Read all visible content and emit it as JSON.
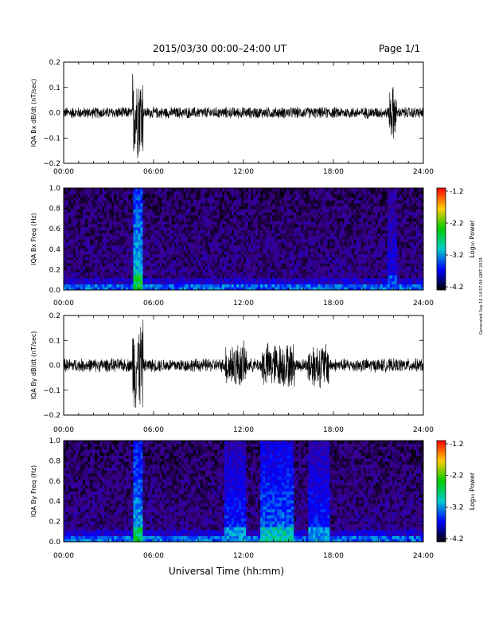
{
  "header": {
    "title": "2015/03/30  00:00–24:00 UT",
    "page": "Page 1/1"
  },
  "footer": {
    "xlabel": "Universal Time (hh:mm)",
    "stamp": "Generated Sep 10 14:57:06 GMT 2019"
  },
  "colorbar": {
    "label": "Log₁₀ Power",
    "ticks": [
      "-1.2",
      "-2.2",
      "-3.2",
      "-4.2"
    ],
    "stops": [
      "#ff0000",
      "#ffcc00",
      "#00cc00",
      "#00cccc",
      "#0000ff",
      "#000000"
    ]
  },
  "chart_data": [
    {
      "type": "line",
      "ylabel": "IQA Bx dB/dt (nT/sec)",
      "xticks": [
        "00:00",
        "06:00",
        "12:00",
        "18:00",
        "24:00"
      ],
      "yticks": [
        "0.2",
        "0.1",
        "0.0",
        "−0.1",
        "−0.2"
      ],
      "xlim": [
        0,
        24
      ],
      "ylim": [
        -0.2,
        0.2
      ],
      "color": "#000000",
      "bursts": [
        {
          "start": 4.6,
          "end": 5.3,
          "amplitude": 0.2
        },
        {
          "start": 21.7,
          "end": 22.2,
          "amplitude": 0.12
        }
      ],
      "baseline_amplitude": 0.025
    },
    {
      "type": "heatmap",
      "ylabel": "IQA Bx Freq (Hz)",
      "xticks": [
        "00:00",
        "06:00",
        "12:00",
        "18:00",
        "24:00"
      ],
      "yticks": [
        "1.0",
        "0.8",
        "0.6",
        "0.4",
        "0.2",
        "0.0"
      ],
      "xlim": [
        0,
        24
      ],
      "ylim": [
        0,
        1.0
      ],
      "colorscale_range": [
        -4.2,
        -1.2
      ],
      "active_intervals": [
        {
          "start": 4.6,
          "end": 5.3,
          "level": -2.5
        },
        {
          "start": 21.6,
          "end": 22.3,
          "level": -3.2
        }
      ]
    },
    {
      "type": "line",
      "ylabel": "IQA By dB/dt (nT/sec)",
      "xticks": [
        "00:00",
        "06:00",
        "12:00",
        "18:00",
        "24:00"
      ],
      "yticks": [
        "0.2",
        "0.1",
        "0.0",
        "−0.1",
        "−0.2"
      ],
      "xlim": [
        0,
        24
      ],
      "ylim": [
        -0.2,
        0.2
      ],
      "color": "#000000",
      "bursts": [
        {
          "start": 4.6,
          "end": 5.3,
          "amplitude": 0.2
        },
        {
          "start": 10.8,
          "end": 12.2,
          "amplitude": 0.1
        },
        {
          "start": 13.2,
          "end": 15.4,
          "amplitude": 0.1
        },
        {
          "start": 16.3,
          "end": 17.7,
          "amplitude": 0.1
        }
      ],
      "baseline_amplitude": 0.03
    },
    {
      "type": "heatmap",
      "ylabel": "IQA By Freq (Hz)",
      "xticks": [
        "00:00",
        "06:00",
        "12:00",
        "18:00",
        "24:00"
      ],
      "yticks": [
        "1.0",
        "0.8",
        "0.6",
        "0.4",
        "0.2",
        "0.0"
      ],
      "xlim": [
        0,
        24
      ],
      "ylim": [
        0,
        1.0
      ],
      "colorscale_range": [
        -4.2,
        -1.2
      ],
      "active_intervals": [
        {
          "start": 4.6,
          "end": 5.3,
          "level": -2.6
        },
        {
          "start": 10.8,
          "end": 12.2,
          "level": -3.0
        },
        {
          "start": 13.2,
          "end": 15.4,
          "level": -2.8
        },
        {
          "start": 16.3,
          "end": 17.7,
          "level": -3.0
        }
      ]
    }
  ]
}
